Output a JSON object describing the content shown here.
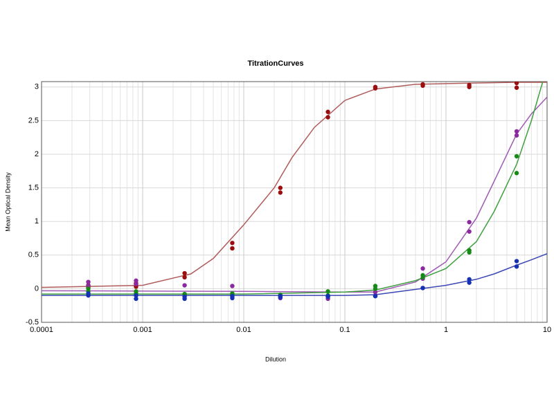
{
  "chart_data": {
    "type": "scatter",
    "title": "TitrationCurves",
    "x_label": "Dilution",
    "y_label": "Mean Optical Density",
    "xscale": "log",
    "xlim": [
      0.0001,
      10
    ],
    "xticks": [
      0.0001,
      0.001,
      0.01,
      0.1,
      1,
      10
    ],
    "xminorticks": [
      0.0002,
      0.0003,
      0.0004,
      0.0005,
      0.0006,
      0.0007,
      0.0008,
      0.0009,
      0.002,
      0.003,
      0.004,
      0.005,
      0.006,
      0.007,
      0.008,
      0.009,
      0.02,
      0.03,
      0.04,
      0.05,
      0.06,
      0.07,
      0.08,
      0.09,
      0.2,
      0.3,
      0.4,
      0.5,
      0.6,
      0.7,
      0.8,
      0.9,
      2,
      3,
      4,
      5,
      6,
      7,
      8,
      9
    ],
    "ylim": [
      -0.5,
      3.08
    ],
    "yticks": [
      -0.5,
      0,
      0.5,
      1,
      1.5,
      2,
      2.5,
      3
    ],
    "grid": true,
    "series": [
      {
        "color": "#9a0e0e",
        "x": [
          0.00029,
          0.00029,
          0.00086,
          0.00086,
          0.0026,
          0.0026,
          0.0077,
          0.0077,
          0.023,
          0.023,
          0.068,
          0.068,
          0.2,
          0.2,
          0.59,
          0.59,
          1.7,
          1.7,
          5,
          5
        ],
        "values": [
          0.05,
          0.02,
          0.08,
          0.03,
          0.23,
          0.17,
          0.68,
          0.6,
          1.5,
          1.43,
          2.63,
          2.55,
          3.0,
          2.98,
          3.04,
          3.02,
          3.03,
          3.0,
          3.06,
          2.99
        ]
      },
      {
        "color": "#8a2a9e",
        "x": [
          0.00029,
          0.00029,
          0.00086,
          0.00086,
          0.0026,
          0.0026,
          0.0077,
          0.0077,
          0.023,
          0.023,
          0.068,
          0.068,
          0.2,
          0.2,
          0.59,
          0.59,
          1.7,
          1.7,
          5,
          5
        ],
        "values": [
          0.1,
          0.04,
          0.12,
          0.07,
          0.05,
          -0.1,
          0.04,
          -0.1,
          -0.12,
          -0.14,
          -0.12,
          -0.15,
          -0.05,
          -0.1,
          0.3,
          0.15,
          0.99,
          0.85,
          2.34,
          2.28
        ]
      },
      {
        "color": "#168a16",
        "x": [
          0.00029,
          0.00029,
          0.00086,
          0.00086,
          0.0026,
          0.0026,
          0.0077,
          0.0077,
          0.023,
          0.023,
          0.068,
          0.068,
          0.2,
          0.2,
          0.59,
          0.59,
          1.7,
          1.7,
          5,
          5
        ],
        "values": [
          0.0,
          -0.04,
          -0.04,
          -0.07,
          -0.08,
          -0.08,
          -0.07,
          -0.09,
          -0.09,
          -0.1,
          -0.04,
          -0.1,
          0.04,
          0.0,
          0.2,
          0.17,
          0.57,
          0.54,
          1.97,
          1.72
        ]
      },
      {
        "color": "#1632b4",
        "x": [
          0.00029,
          0.00029,
          0.00086,
          0.00086,
          0.0026,
          0.0026,
          0.0077,
          0.0077,
          0.023,
          0.023,
          0.068,
          0.068,
          0.2,
          0.2,
          0.59,
          0.59,
          1.7,
          1.7,
          5,
          5
        ],
        "values": [
          -0.07,
          -0.1,
          -0.1,
          -0.15,
          -0.12,
          -0.15,
          -0.11,
          -0.14,
          -0.11,
          -0.13,
          -0.11,
          -0.12,
          -0.11,
          -0.11,
          0.01,
          0.01,
          0.14,
          0.09,
          0.41,
          0.33
        ]
      }
    ],
    "curves": [
      {
        "color": "#b05a5a",
        "x": [
          0.0001,
          0.001,
          0.003,
          0.005,
          0.01,
          0.02,
          0.03,
          0.05,
          0.1,
          0.2,
          0.5,
          1,
          2,
          5,
          10
        ],
        "values": [
          0.02,
          0.05,
          0.22,
          0.45,
          0.95,
          1.5,
          1.95,
          2.4,
          2.8,
          2.97,
          3.04,
          3.05,
          3.06,
          3.07,
          3.07
        ]
      },
      {
        "color": "#a05ab4",
        "x": [
          0.0001,
          0.01,
          0.1,
          0.2,
          0.5,
          1,
          2,
          3,
          5,
          7,
          10
        ],
        "values": [
          -0.03,
          -0.04,
          -0.05,
          -0.05,
          0.1,
          0.4,
          1.05,
          1.6,
          2.3,
          2.6,
          2.85
        ]
      },
      {
        "color": "#3fa03f",
        "x": [
          0.0001,
          0.01,
          0.1,
          0.2,
          0.5,
          1,
          2,
          3,
          5,
          7,
          10
        ],
        "values": [
          -0.08,
          -0.08,
          -0.05,
          -0.02,
          0.12,
          0.3,
          0.7,
          1.15,
          1.85,
          2.5,
          3.3
        ]
      },
      {
        "color": "#3a46b4",
        "x": [
          0.0001,
          0.01,
          0.1,
          0.2,
          0.5,
          1,
          2,
          3,
          5,
          7,
          10
        ],
        "values": [
          -0.1,
          -0.1,
          -0.1,
          -0.09,
          -0.01,
          0.05,
          0.14,
          0.22,
          0.35,
          0.43,
          0.52
        ]
      }
    ]
  }
}
